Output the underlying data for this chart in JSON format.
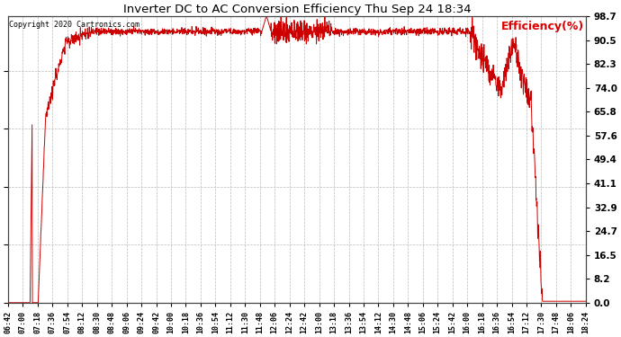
{
  "title": "Inverter DC to AC Conversion Efficiency Thu Sep 24 18:34",
  "ylabel": "Efficiency(%)",
  "ylabel_color": "#dd0000",
  "copyright_text": "Copyright 2020 Cartronics.com",
  "line_color": "#cc0000",
  "background_color": "#ffffff",
  "plot_bg_color": "#ffffff",
  "grid_color": "#bbbbbb",
  "yticks": [
    0.0,
    8.2,
    16.5,
    24.7,
    32.9,
    41.1,
    49.4,
    57.6,
    65.8,
    74.0,
    82.3,
    90.5,
    98.7
  ],
  "xtick_labels": [
    "06:42",
    "07:00",
    "07:18",
    "07:36",
    "07:54",
    "08:12",
    "08:30",
    "08:48",
    "09:06",
    "09:24",
    "09:42",
    "10:00",
    "10:18",
    "10:36",
    "10:54",
    "11:12",
    "11:30",
    "11:48",
    "12:06",
    "12:24",
    "12:42",
    "13:00",
    "13:18",
    "13:36",
    "13:54",
    "14:12",
    "14:30",
    "14:48",
    "15:06",
    "15:24",
    "15:42",
    "16:00",
    "16:18",
    "16:36",
    "16:54",
    "17:12",
    "17:30",
    "17:48",
    "18:06",
    "18:24"
  ],
  "figsize": [
    6.9,
    3.75
  ],
  "dpi": 100
}
